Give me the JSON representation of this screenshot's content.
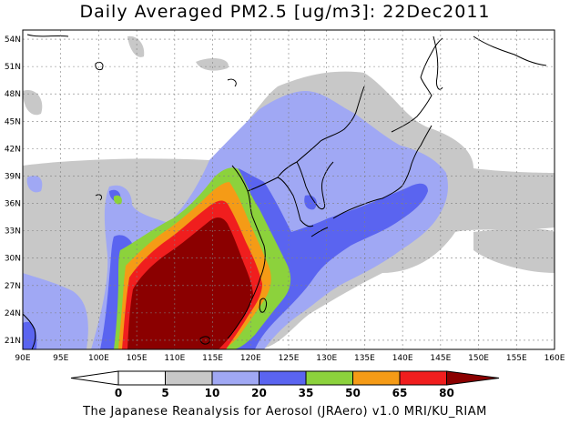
{
  "title": "Daily Averaged PM2.5 [ug/m3]: 22Dec2011",
  "footer": "The Japanese Reanalysis for Aerosol (JRAero) v1.0 MRI/KU_RIAM",
  "map": {
    "lon_range": [
      90,
      160
    ],
    "lat_range": [
      20,
      55
    ],
    "lon_ticks": [
      "90E",
      "95E",
      "100E",
      "105E",
      "110E",
      "115E",
      "120E",
      "125E",
      "130E",
      "135E",
      "140E",
      "145E",
      "150E",
      "155E",
      "160E"
    ],
    "lat_ticks": [
      "54N",
      "51N",
      "48N",
      "45N",
      "42N",
      "39N",
      "36N",
      "33N",
      "30N",
      "27N",
      "24N",
      "21N"
    ],
    "gridlines": true,
    "coastline_color": "#000000"
  },
  "colorbar": {
    "levels": [
      "0",
      "5",
      "10",
      "20",
      "35",
      "50",
      "65",
      "80"
    ],
    "colors": [
      "#ffffff",
      "#ffffff",
      "#c8c8c8",
      "#a0a8f4",
      "#5a64f0",
      "#8cd23c",
      "#f59b16",
      "#f01e1e",
      "#8b0000"
    ]
  }
}
